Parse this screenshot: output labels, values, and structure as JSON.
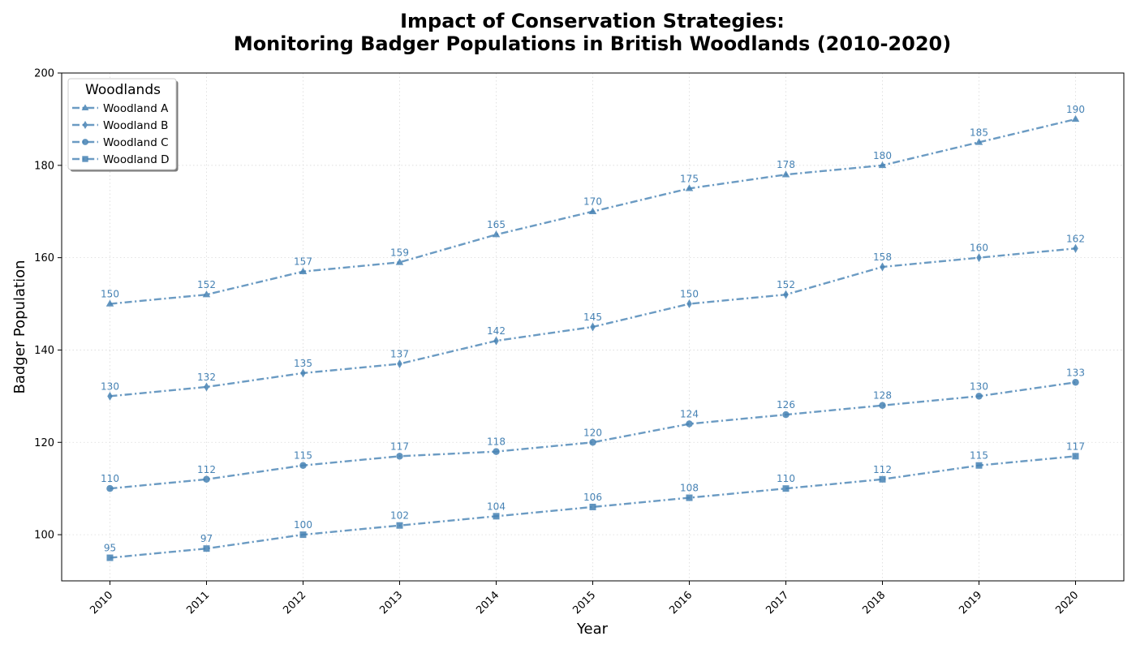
{
  "chart_data": {
    "type": "line",
    "title_lines": [
      "Impact of Conservation Strategies:",
      "Monitoring Badger Populations in British Woodlands (2010-2020)"
    ],
    "xlabel": "Year",
    "ylabel": "Badger Population",
    "x": [
      "2010",
      "2011",
      "2012",
      "2013",
      "2014",
      "2015",
      "2016",
      "2017",
      "2018",
      "2019",
      "2020"
    ],
    "xlim": [
      2009.5,
      2020.5
    ],
    "ylim": [
      90,
      200
    ],
    "yticks": [
      100,
      120,
      140,
      160,
      180,
      200
    ],
    "grid": true,
    "legend": {
      "title": "Woodlands",
      "placement": "top-left"
    },
    "line_color": "#4682b4",
    "series": [
      {
        "name": "Woodland A",
        "marker": "triangle",
        "values": [
          150,
          152,
          157,
          159,
          165,
          170,
          175,
          178,
          180,
          185,
          190
        ]
      },
      {
        "name": "Woodland B",
        "marker": "diamond",
        "values": [
          130,
          132,
          135,
          137,
          142,
          145,
          150,
          152,
          158,
          160,
          162
        ]
      },
      {
        "name": "Woodland C",
        "marker": "circle",
        "values": [
          110,
          112,
          115,
          117,
          118,
          120,
          124,
          126,
          128,
          130,
          133
        ]
      },
      {
        "name": "Woodland D",
        "marker": "square",
        "values": [
          95,
          97,
          100,
          102,
          104,
          106,
          108,
          110,
          112,
          115,
          117
        ]
      }
    ]
  }
}
